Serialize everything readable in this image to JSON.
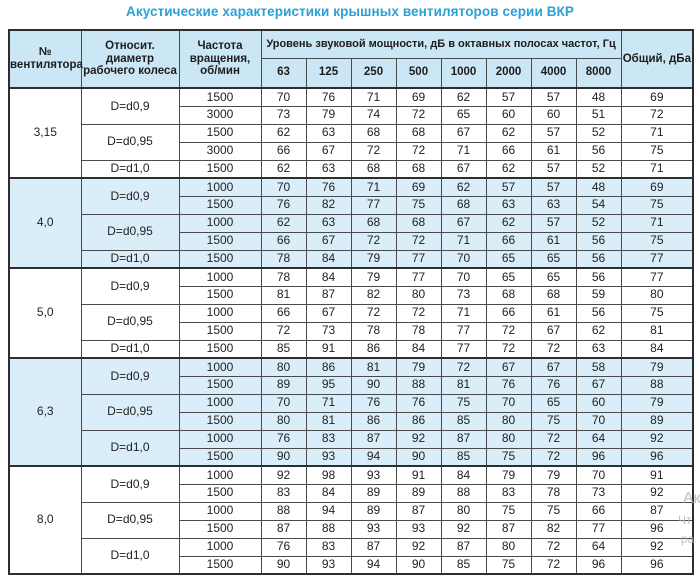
{
  "title": "Акустические характеристики крышных вентиляторов серии ВКР",
  "colors": {
    "title": "#2aa0d6",
    "header_bg": "#cbe6f5",
    "row_alt_bg": "#daeefa",
    "border": "#4a4a4a",
    "border_strong": "#2e2e2e",
    "text": "#222222",
    "watermark": "#a9b2b8"
  },
  "table": {
    "headers": {
      "fan": "№ вентилятора",
      "diameter": "Относит. диаметр рабочего колеса",
      "speed": "Частота вращения, об/мин",
      "spl_group": "Уровень звуковой мощности, дБ в октавных полосах частот, Гц",
      "frequencies": [
        "63",
        "125",
        "250",
        "500",
        "1000",
        "2000",
        "4000",
        "8000"
      ],
      "total": "Общий, дБа"
    },
    "sections": [
      {
        "fan": "3,15",
        "highlight": false,
        "groups": [
          {
            "diameter": "D=d0,9",
            "rows": [
              {
                "speed": "1500",
                "levels": [
                  70,
                  76,
                  71,
                  69,
                  62,
                  57,
                  57,
                  48
                ],
                "total": 69
              },
              {
                "speed": "3000",
                "levels": [
                  73,
                  79,
                  74,
                  72,
                  65,
                  60,
                  60,
                  51
                ],
                "total": 72
              }
            ]
          },
          {
            "diameter": "D=d0,95",
            "rows": [
              {
                "speed": "1500",
                "levels": [
                  62,
                  63,
                  68,
                  68,
                  67,
                  62,
                  57,
                  52
                ],
                "total": 71
              },
              {
                "speed": "3000",
                "levels": [
                  66,
                  67,
                  72,
                  72,
                  71,
                  66,
                  61,
                  56
                ],
                "total": 75
              }
            ]
          },
          {
            "diameter": "D=d1,0",
            "rows": [
              {
                "speed": "1500",
                "levels": [
                  62,
                  63,
                  68,
                  68,
                  67,
                  62,
                  57,
                  52
                ],
                "total": 71
              }
            ]
          }
        ]
      },
      {
        "fan": "4,0",
        "highlight": true,
        "groups": [
          {
            "diameter": "D=d0,9",
            "rows": [
              {
                "speed": "1000",
                "levels": [
                  70,
                  76,
                  71,
                  69,
                  62,
                  57,
                  57,
                  48
                ],
                "total": 69
              },
              {
                "speed": "1500",
                "levels": [
                  76,
                  82,
                  77,
                  75,
                  68,
                  63,
                  63,
                  54
                ],
                "total": 75
              }
            ]
          },
          {
            "diameter": "D=d0,95",
            "rows": [
              {
                "speed": "1000",
                "levels": [
                  62,
                  63,
                  68,
                  68,
                  67,
                  62,
                  57,
                  52
                ],
                "total": 71
              },
              {
                "speed": "1500",
                "levels": [
                  66,
                  67,
                  72,
                  72,
                  71,
                  66,
                  61,
                  56
                ],
                "total": 75
              }
            ]
          },
          {
            "diameter": "D=d1,0",
            "rows": [
              {
                "speed": "1500",
                "levels": [
                  78,
                  84,
                  79,
                  77,
                  70,
                  65,
                  65,
                  56
                ],
                "total": 77
              }
            ]
          }
        ]
      },
      {
        "fan": "5,0",
        "highlight": false,
        "groups": [
          {
            "diameter": "D=d0,9",
            "rows": [
              {
                "speed": "1000",
                "levels": [
                  78,
                  84,
                  79,
                  77,
                  70,
                  65,
                  65,
                  56
                ],
                "total": 77
              },
              {
                "speed": "1500",
                "levels": [
                  81,
                  87,
                  82,
                  80,
                  73,
                  68,
                  68,
                  59
                ],
                "total": 80
              }
            ]
          },
          {
            "diameter": "D=d0,95",
            "rows": [
              {
                "speed": "1000",
                "levels": [
                  66,
                  67,
                  72,
                  72,
                  71,
                  66,
                  61,
                  56
                ],
                "total": 75
              },
              {
                "speed": "1500",
                "levels": [
                  72,
                  73,
                  78,
                  78,
                  77,
                  72,
                  67,
                  62
                ],
                "total": 81
              }
            ]
          },
          {
            "diameter": "D=d1,0",
            "rows": [
              {
                "speed": "1500",
                "levels": [
                  85,
                  91,
                  86,
                  84,
                  77,
                  72,
                  72,
                  63
                ],
                "total": 84
              }
            ]
          }
        ]
      },
      {
        "fan": "6,3",
        "highlight": true,
        "groups": [
          {
            "diameter": "D=d0,9",
            "rows": [
              {
                "speed": "1000",
                "levels": [
                  80,
                  86,
                  81,
                  79,
                  72,
                  67,
                  67,
                  58
                ],
                "total": 79
              },
              {
                "speed": "1500",
                "levels": [
                  89,
                  95,
                  90,
                  88,
                  81,
                  76,
                  76,
                  67
                ],
                "total": 88
              }
            ]
          },
          {
            "diameter": "D=d0,95",
            "rows": [
              {
                "speed": "1000",
                "levels": [
                  70,
                  71,
                  76,
                  76,
                  75,
                  70,
                  65,
                  60
                ],
                "total": 79
              },
              {
                "speed": "1500",
                "levels": [
                  80,
                  81,
                  86,
                  86,
                  85,
                  80,
                  75,
                  70
                ],
                "total": 89
              }
            ]
          },
          {
            "diameter": "D=d1,0",
            "rows": [
              {
                "speed": "1000",
                "levels": [
                  76,
                  83,
                  87,
                  92,
                  87,
                  80,
                  72,
                  64
                ],
                "total": 92
              },
              {
                "speed": "1500",
                "levels": [
                  90,
                  93,
                  94,
                  90,
                  85,
                  75,
                  72,
                  96
                ],
                "total": 96
              }
            ]
          }
        ]
      },
      {
        "fan": "8,0",
        "highlight": false,
        "groups": [
          {
            "diameter": "D=d0,9",
            "rows": [
              {
                "speed": "1000",
                "levels": [
                  92,
                  98,
                  93,
                  91,
                  84,
                  79,
                  79,
                  70
                ],
                "total": 91
              },
              {
                "speed": "1500",
                "levels": [
                  83,
                  84,
                  89,
                  89,
                  88,
                  83,
                  78,
                  73
                ],
                "total": 92
              }
            ]
          },
          {
            "diameter": "D=d0,95",
            "rows": [
              {
                "speed": "1000",
                "levels": [
                  88,
                  94,
                  89,
                  87,
                  80,
                  75,
                  75,
                  66
                ],
                "total": 87
              },
              {
                "speed": "1500",
                "levels": [
                  87,
                  88,
                  93,
                  93,
                  92,
                  87,
                  82,
                  77
                ],
                "total": 96
              }
            ]
          },
          {
            "diameter": "D=d1,0",
            "rows": [
              {
                "speed": "1000",
                "levels": [
                  76,
                  83,
                  87,
                  92,
                  87,
                  80,
                  72,
                  64
                ],
                "total": 92
              },
              {
                "speed": "1500",
                "levels": [
                  90,
                  93,
                  94,
                  90,
                  85,
                  75,
                  72,
                  96
                ],
                "total": 96
              }
            ]
          }
        ]
      }
    ]
  },
  "watermark": {
    "lines": [
      "Ак",
      "Чт",
      "ра"
    ]
  }
}
